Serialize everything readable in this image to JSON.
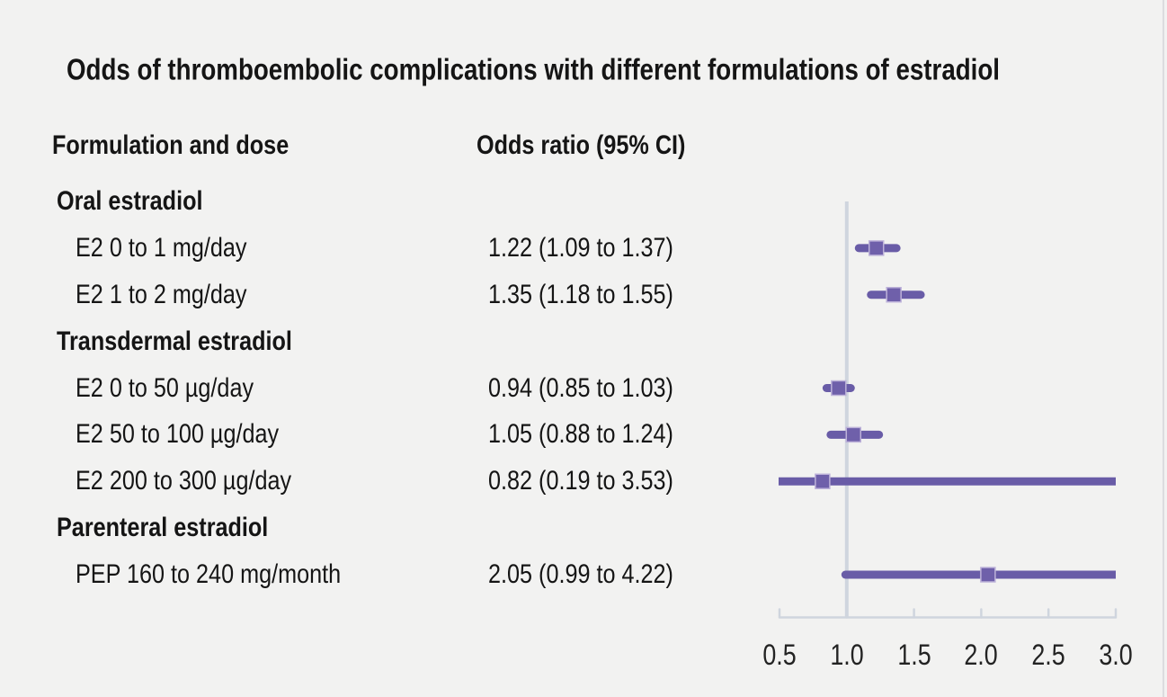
{
  "chart_data": {
    "type": "forest",
    "title": "Odds of thromboembolic complications with different formulations of estradiol",
    "columns": {
      "formulation": "Formulation and dose",
      "odds_ratio": "Odds ratio (95% CI)"
    },
    "rows": [
      {
        "kind": "group",
        "label": "Oral estradiol"
      },
      {
        "kind": "item",
        "label": "E2 0 to 1 mg/day",
        "or_text": "1.22 (1.09 to 1.37)",
        "or": 1.22,
        "ci_low": 1.09,
        "ci_high": 1.37
      },
      {
        "kind": "item",
        "label": "E2 1 to 2 mg/day",
        "or_text": "1.35 (1.18 to 1.55)",
        "or": 1.35,
        "ci_low": 1.18,
        "ci_high": 1.55
      },
      {
        "kind": "group",
        "label": "Transdermal estradiol"
      },
      {
        "kind": "item",
        "label": "E2 0 to 50 µg/day",
        "or_text": "0.94 (0.85 to 1.03)",
        "or": 0.94,
        "ci_low": 0.85,
        "ci_high": 1.03
      },
      {
        "kind": "item",
        "label": "E2 50 to 100 µg/day",
        "or_text": "1.05 (0.88 to 1.24)",
        "or": 1.05,
        "ci_low": 0.88,
        "ci_high": 1.24
      },
      {
        "kind": "item",
        "label": "E2 200 to 300 µg/day",
        "or_text": "0.82 (0.19 to 3.53)",
        "or": 0.82,
        "ci_low": 0.19,
        "ci_high": 3.53
      },
      {
        "kind": "group",
        "label": "Parenteral estradiol"
      },
      {
        "kind": "item",
        "label": "PEP 160 to 240 mg/month",
        "or_text": "2.05 (0.99 to 4.22)",
        "or": 2.05,
        "ci_low": 0.99,
        "ci_high": 4.22
      }
    ],
    "x_axis": {
      "min": 0.5,
      "max": 3.0,
      "ticks": [
        0.5,
        1.0,
        1.5,
        2.0,
        2.5,
        3.0
      ],
      "tick_labels": [
        "0.5",
        "1.0",
        "1.5",
        "2.0",
        "2.5",
        "3.0"
      ],
      "reference_line": 1.0,
      "grid": false
    },
    "legend": null,
    "colors": {
      "ci_line": "#695CA7",
      "marker": "#6F60AA",
      "marker_border": "#BDB2D9",
      "axis": "#CFD5DE",
      "background": "#F2F2F1",
      "text": "#151515"
    }
  }
}
